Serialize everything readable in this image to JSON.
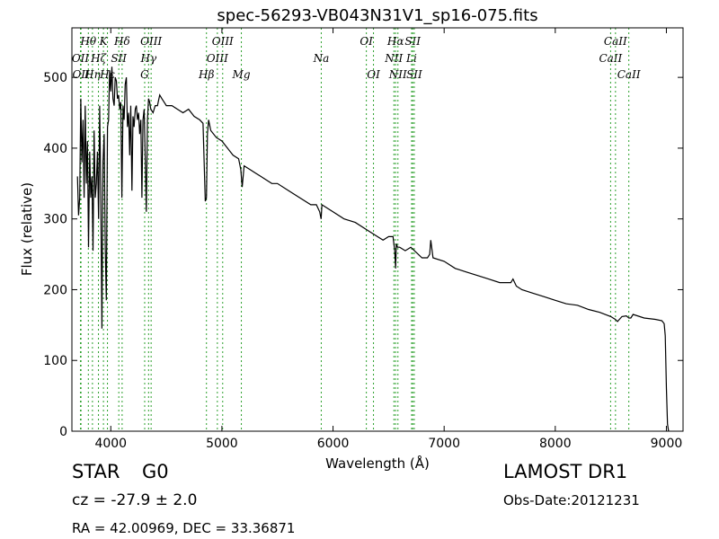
{
  "chart_data": {
    "type": "line",
    "title": "spec-56293-VB043N31V1_sp16-075.fits",
    "xlabel": "Wavelength (Å)",
    "ylabel": "Flux (relative)",
    "xlim": [
      3650,
      9150
    ],
    "ylim": [
      0,
      570
    ],
    "xticks": [
      4000,
      5000,
      6000,
      7000,
      8000,
      9000
    ],
    "yticks": [
      0,
      100,
      200,
      300,
      400,
      500
    ],
    "grid": false,
    "line_color": "#000000",
    "marker_color": "#2ca02c",
    "series": [
      {
        "x": [
          3700,
          3710,
          3720,
          3730,
          3740,
          3750,
          3760,
          3770,
          3780,
          3790,
          3800,
          3810,
          3820,
          3830,
          3840,
          3850,
          3860,
          3870,
          3880,
          3890,
          3900,
          3910,
          3920,
          3930,
          3940,
          3950,
          3960,
          3970,
          3980,
          3990,
          4000,
          4010,
          4020,
          4030,
          4040,
          4050,
          4060,
          4070,
          4080,
          4090,
          4100,
          4110,
          4120,
          4130,
          4140,
          4150,
          4160,
          4170,
          4180,
          4190,
          4200,
          4210,
          4220,
          4230,
          4240,
          4250,
          4260,
          4270,
          4280,
          4290,
          4300,
          4310,
          4320,
          4330,
          4340,
          4350,
          4360,
          4380,
          4400,
          4420,
          4440,
          4460,
          4480,
          4500,
          4550,
          4600,
          4650,
          4700,
          4750,
          4800,
          4830,
          4850,
          4861,
          4870,
          4880,
          4900,
          4950,
          5000,
          5050,
          5100,
          5150,
          5170,
          5183,
          5200,
          5250,
          5300,
          5350,
          5400,
          5450,
          5500,
          5600,
          5700,
          5800,
          5850,
          5880,
          5893,
          5900,
          5950,
          6000,
          6100,
          6200,
          6300,
          6400,
          6450,
          6500,
          6540,
          6555,
          6563,
          6570,
          6580,
          6600,
          6650,
          6700,
          6800,
          6850,
          6870,
          6880,
          6900,
          7000,
          7100,
          7200,
          7300,
          7400,
          7500,
          7600,
          7620,
          7650,
          7700,
          7800,
          7900,
          8000,
          8100,
          8200,
          8300,
          8400,
          8500,
          8540,
          8560,
          8600,
          8640,
          8662,
          8680,
          8700,
          8800,
          8900,
          8960,
          8980,
          8990,
          9000,
          9010,
          9020
        ],
        "y": [
          360,
          305,
          330,
          470,
          380,
          440,
          330,
          460,
          350,
          410,
          260,
          395,
          330,
          360,
          255,
          425,
          330,
          350,
          395,
          300,
          460,
          340,
          145,
          380,
          420,
          260,
          185,
          430,
          440,
          510,
          480,
          515,
          470,
          460,
          500,
          495,
          470,
          475,
          455,
          465,
          330,
          460,
          440,
          490,
          500,
          430,
          450,
          390,
          460,
          340,
          445,
          430,
          455,
          460,
          440,
          450,
          420,
          440,
          330,
          440,
          455,
          385,
          310,
          440,
          470,
          465,
          455,
          450,
          460,
          460,
          475,
          470,
          465,
          460,
          460,
          455,
          450,
          455,
          445,
          440,
          435,
          325,
          330,
          420,
          440,
          425,
          415,
          410,
          400,
          390,
          385,
          370,
          345,
          375,
          370,
          365,
          360,
          355,
          350,
          350,
          340,
          330,
          320,
          320,
          310,
          300,
          320,
          315,
          310,
          300,
          295,
          285,
          275,
          270,
          275,
          275,
          255,
          230,
          265,
          260,
          260,
          255,
          260,
          245,
          245,
          250,
          270,
          245,
          240,
          230,
          225,
          220,
          215,
          210,
          210,
          215,
          205,
          200,
          195,
          190,
          185,
          180,
          178,
          172,
          168,
          162,
          158,
          155,
          162,
          163,
          160,
          160,
          165,
          160,
          158,
          156,
          152,
          135,
          60,
          10,
          0
        ]
      }
    ],
    "markers": [
      {
        "x": 3727,
        "label": "OII",
        "row": 1
      },
      {
        "x": 3732,
        "label": "OII",
        "row": 2
      },
      {
        "x": 3798,
        "label": "Hθ",
        "row": 0
      },
      {
        "x": 3835,
        "label": "Hη",
        "row": 2
      },
      {
        "x": 3889,
        "label": "Hζ",
        "row": 1
      },
      {
        "x": 3934,
        "label": "K",
        "row": 0
      },
      {
        "x": 3970,
        "label": "Hε",
        "row": 2
      },
      {
        "x": 4072,
        "label": "SII",
        "row": 1
      },
      {
        "x": 4102,
        "label": "Hδ",
        "row": 0
      },
      {
        "x": 4305,
        "label": "G",
        "row": 2
      },
      {
        "x": 4340,
        "label": "Hγ",
        "row": 1
      },
      {
        "x": 4363,
        "label": "OIII",
        "row": 0
      },
      {
        "x": 4861,
        "label": "Hβ",
        "row": 2
      },
      {
        "x": 4959,
        "label": "OIII",
        "row": 1
      },
      {
        "x": 5007,
        "label": "OIII",
        "row": 0
      },
      {
        "x": 5175,
        "label": "Mg",
        "row": 2
      },
      {
        "x": 5894,
        "label": "Na",
        "row": 1
      },
      {
        "x": 6300,
        "label": "OI",
        "row": 0
      },
      {
        "x": 6364,
        "label": "OI",
        "row": 2
      },
      {
        "x": 6548,
        "label": "NII",
        "row": 1
      },
      {
        "x": 6563,
        "label": "Hα",
        "row": 0
      },
      {
        "x": 6584,
        "label": "NII",
        "row": 2
      },
      {
        "x": 6707,
        "label": "Li",
        "row": 1
      },
      {
        "x": 6717,
        "label": "SII",
        "row": 0
      },
      {
        "x": 6731,
        "label": "SII",
        "row": 2
      },
      {
        "x": 8498,
        "label": "CaII",
        "row": 1
      },
      {
        "x": 8542,
        "label": "CaII",
        "row": 0
      },
      {
        "x": 8662,
        "label": "CaII",
        "row": 2
      }
    ]
  },
  "info": {
    "class": "STAR",
    "subclass": "G0",
    "survey": "LAMOST DR1",
    "cz": "cz = -27.9 ± 2.0",
    "obs_date": "Obs-Date:20121231",
    "coords": "RA = 42.00969, DEC = 33.36871"
  }
}
